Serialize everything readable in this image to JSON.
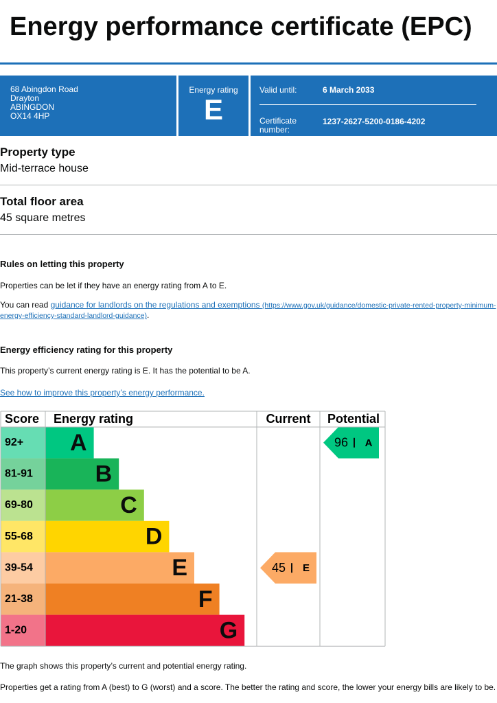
{
  "header": {
    "title": "Energy performance certificate (EPC)"
  },
  "summary": {
    "address": [
      "68 Abingdon Road",
      "Drayton",
      "ABINGDON",
      "OX14 4HP"
    ],
    "rating_label": "Energy rating",
    "rating": "E",
    "valid_until_label": "Valid until:",
    "valid_until": "6 March 2033",
    "certificate_label": "Certificate number:",
    "certificate_number": "1237-2627-5200-0186-4202"
  },
  "property_type": {
    "heading": "Property type",
    "value": "Mid-terrace house"
  },
  "floor_area": {
    "heading": "Total floor area",
    "value": "45 square metres"
  },
  "rules": {
    "heading": "Rules on letting this property",
    "text": "Properties can be let if they have an energy rating from A to E.",
    "link_prefix": "You can read ",
    "link_text": "guidance for landlords on the regulations and exemptions",
    "link_url": "(https://www.gov.uk/guidance/domestic-private-rented-property-minimum-energy-efficiency-standard-landlord-guidance)",
    "link_suffix": "."
  },
  "efficiency": {
    "heading": "Energy efficiency rating for this property",
    "text": "This property’s current energy rating is E. It has the potential to be A.",
    "link": "See how to improve this property’s energy performance."
  },
  "rating_table": {
    "headers": [
      "Score",
      "Energy rating",
      "Current",
      "Potential"
    ],
    "bands": [
      {
        "score": "92+",
        "letter": "A",
        "color": "#00c781"
      },
      {
        "score": "81-91",
        "letter": "B",
        "color": "#19b459"
      },
      {
        "score": "69-80",
        "letter": "C",
        "color": "#8dce46"
      },
      {
        "score": "55-68",
        "letter": "D",
        "color": "#ffd500"
      },
      {
        "score": "39-54",
        "letter": "E",
        "color": "#fcaa65"
      },
      {
        "score": "21-38",
        "letter": "F",
        "color": "#ef8023"
      },
      {
        "score": "1-20",
        "letter": "G",
        "color": "#e9153b"
      }
    ],
    "current": {
      "score": "45",
      "letter": "E"
    },
    "potential": {
      "score": "96",
      "letter": "A"
    }
  },
  "footer": [
    "The graph shows this property’s current and potential energy rating.",
    "Properties get a rating from A (best) to G (worst) and a score. The better the rating and score, the lower your energy bills are likely to be."
  ]
}
